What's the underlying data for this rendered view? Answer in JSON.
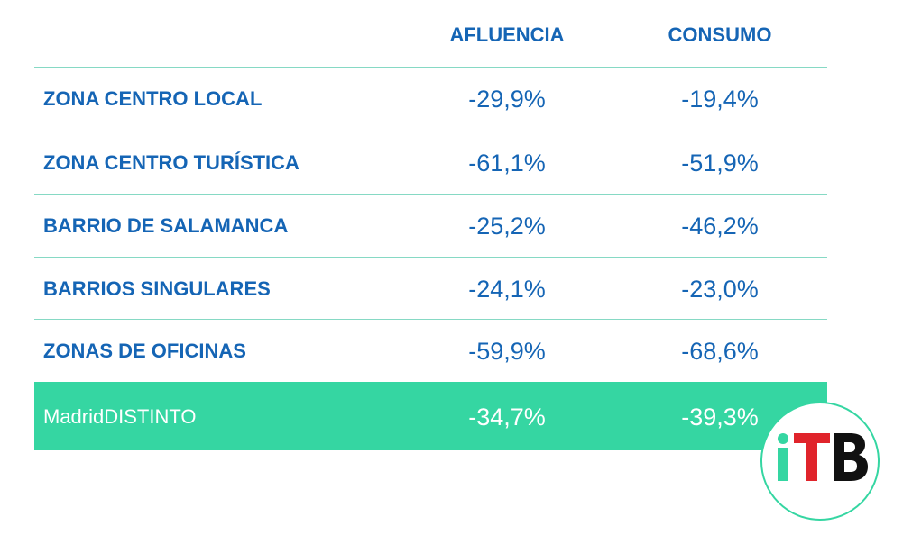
{
  "chart_data": {
    "type": "table",
    "columns": [
      "AFLUENCIA",
      "CONSUMO"
    ],
    "rows": [
      {
        "label": "ZONA CENTRO LOCAL",
        "afluencia": "-29,9%",
        "consumo": "-19,4%"
      },
      {
        "label": "ZONA CENTRO TURÍSTICA",
        "afluencia": "-61,1%",
        "consumo": "-51,9%"
      },
      {
        "label": "BARRIO DE SALAMANCA",
        "afluencia": "-25,2%",
        "consumo": "-46,2%"
      },
      {
        "label": "BARRIOS SINGULARES",
        "afluencia": "-24,1%",
        "consumo": "-23,0%"
      },
      {
        "label": "ZONAS DE OFICINAS",
        "afluencia": "-59,9%",
        "consumo": "-68,6%"
      }
    ],
    "total": {
      "label": "MadridDISTINTO",
      "afluencia": "-34,7%",
      "consumo": "-39,3%"
    }
  },
  "logo": {
    "text": "iTB",
    "icon": "itb-logo-icon",
    "colors": {
      "i": "#35d6a2",
      "T": "#e0242b",
      "B": "#111111"
    }
  },
  "colors": {
    "header_text": "#1565b5",
    "value_text": "#1565b5",
    "divider": "#86d9c4",
    "total_background": "#35d6a2",
    "total_text": "#ffffff"
  }
}
